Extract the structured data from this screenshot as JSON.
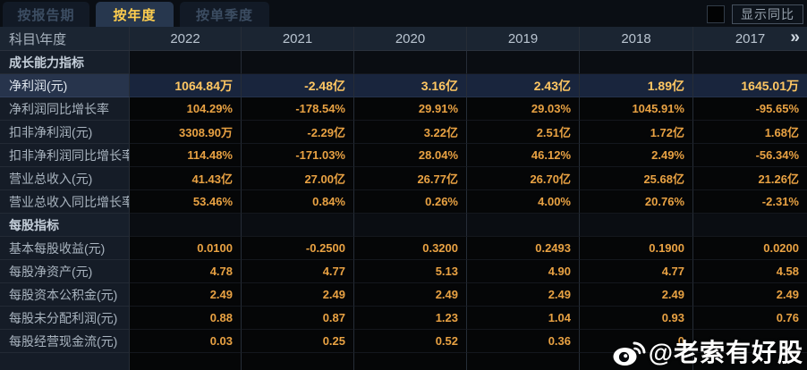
{
  "tabs": [
    {
      "label": "按报告期",
      "active": false
    },
    {
      "label": "按年度",
      "active": true
    },
    {
      "label": "按单季度",
      "active": false
    }
  ],
  "controls": {
    "show_yoy_label": "显示同比",
    "show_yoy_checked": false
  },
  "table": {
    "corner_label": "科目\\年度",
    "years": [
      "2022",
      "2021",
      "2020",
      "2019",
      "2018",
      "2017"
    ],
    "more_icon": "»",
    "rows": [
      {
        "type": "section",
        "label": "成长能力指标",
        "values": [
          "",
          "",
          "",
          "",
          "",
          ""
        ]
      },
      {
        "type": "highlight",
        "label": "净利润(元)",
        "values": [
          "1064.84万",
          "-2.48亿",
          "3.16亿",
          "2.43亿",
          "1.89亿",
          "1645.01万"
        ]
      },
      {
        "type": "data",
        "label": "净利润同比增长率",
        "values": [
          "104.29%",
          "-178.54%",
          "29.91%",
          "29.03%",
          "1045.91%",
          "-95.65%"
        ]
      },
      {
        "type": "data",
        "label": "扣非净利润(元)",
        "values": [
          "3308.90万",
          "-2.29亿",
          "3.22亿",
          "2.51亿",
          "1.72亿",
          "1.68亿"
        ]
      },
      {
        "type": "data",
        "label": "扣非净利润同比增长率",
        "values": [
          "114.48%",
          "-171.03%",
          "28.04%",
          "46.12%",
          "2.49%",
          "-56.34%"
        ]
      },
      {
        "type": "data",
        "label": "营业总收入(元)",
        "values": [
          "41.43亿",
          "27.00亿",
          "26.77亿",
          "26.70亿",
          "25.68亿",
          "21.26亿"
        ]
      },
      {
        "type": "data",
        "label": "营业总收入同比增长率",
        "values": [
          "53.46%",
          "0.84%",
          "0.26%",
          "4.00%",
          "20.76%",
          "-2.31%"
        ]
      },
      {
        "type": "section",
        "label": "每股指标",
        "values": [
          "",
          "",
          "",
          "",
          "",
          ""
        ]
      },
      {
        "type": "data",
        "label": "基本每股收益(元)",
        "values": [
          "0.0100",
          "-0.2500",
          "0.3200",
          "0.2493",
          "0.1900",
          "0.0200"
        ]
      },
      {
        "type": "data",
        "label": "每股净资产(元)",
        "values": [
          "4.78",
          "4.77",
          "5.13",
          "4.90",
          "4.77",
          "4.58"
        ]
      },
      {
        "type": "data",
        "label": "每股资本公积金(元)",
        "values": [
          "2.49",
          "2.49",
          "2.49",
          "2.49",
          "2.49",
          "2.49"
        ]
      },
      {
        "type": "data",
        "label": "每股未分配利润(元)",
        "values": [
          "0.88",
          "0.87",
          "1.23",
          "1.04",
          "0.93",
          "0.76"
        ]
      },
      {
        "type": "data",
        "label": "每股经营现金流(元)",
        "values": [
          "0.03",
          "0.25",
          "0.52",
          "0.36",
          "0",
          ""
        ]
      }
    ]
  },
  "watermark": {
    "icon": "weibo-logo",
    "text": "@老索有好股"
  },
  "colors": {
    "accent_gold": "#ffce4f",
    "value_orange": "#e9a243",
    "highlight_row_bg": "#19253d",
    "header_bg": "#1b2532",
    "label_col_bg": "#151c27",
    "data_cell_bg": "#050607"
  }
}
